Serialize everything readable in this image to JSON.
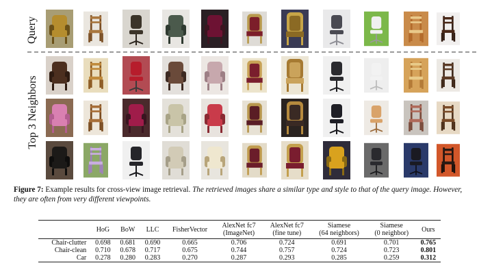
{
  "figure": {
    "query_label": "Query",
    "neighbors_label": "Top 3 Neighbors",
    "columns": 11,
    "rows": [
      {
        "name": "query",
        "images": [
          {
            "bg": "#a89d74",
            "seat": "#b58d2e",
            "frame": "#6b5118",
            "type": "armchair"
          },
          {
            "bg": "#eae6df",
            "seat": "#a9773f",
            "frame": "#7a4e24",
            "type": "wood"
          },
          {
            "bg": "#d9d6cf",
            "seat": "#3b3429",
            "frame": "#2a241c",
            "type": "office"
          },
          {
            "bg": "#e8e6e2",
            "seat": "#4b5a4c",
            "frame": "#2f3a30",
            "type": "armchair"
          },
          {
            "bg": "#2a1f24",
            "seat": "#6d1233",
            "frame": "#3b1420",
            "type": "armchair"
          },
          {
            "bg": "#dedbd6",
            "seat": "#7c1e2a",
            "frame": "#b89a4e",
            "type": "throne"
          },
          {
            "bg": "#3a3b55",
            "seat": "#8b6a24",
            "frame": "#c7a548",
            "type": "throne"
          },
          {
            "bg": "#e9e9ea",
            "seat": "#4a4a52",
            "frame": "#8d8d94",
            "type": "office"
          },
          {
            "bg": "#7cb84a",
            "seat": "#f0f0f0",
            "frame": "#9a9a9a",
            "type": "office"
          },
          {
            "bg": "#c98b4a",
            "seat": "#e9c98a",
            "frame": "#b36a2a",
            "type": "wood"
          },
          {
            "bg": "#f1efee",
            "seat": "#4a2818",
            "frame": "#2f1a10",
            "type": "wood"
          }
        ]
      },
      {
        "name": "n1",
        "images": [
          {
            "bg": "#d9d1c9",
            "seat": "#4c2f1f",
            "frame": "#2f1c12",
            "type": "armchair"
          },
          {
            "bg": "#e9ddbd",
            "seat": "#c08a3c",
            "frame": "#8c5a22",
            "type": "wood"
          },
          {
            "bg": "#b24b53",
            "seat": "#b71d2c",
            "frame": "#3a3a3a",
            "type": "office"
          },
          {
            "bg": "#e3e0dc",
            "seat": "#6a4a3a",
            "frame": "#3d2a22",
            "type": "armchair"
          },
          {
            "bg": "#ece7e3",
            "seat": "#c7a8ad",
            "frame": "#9d7f85",
            "type": "armchair"
          },
          {
            "bg": "#ece4cc",
            "seat": "#7a1e2d",
            "frame": "#c8a256",
            "type": "throne"
          },
          {
            "bg": "#ece6d5",
            "seat": "#caa35b",
            "frame": "#a67a32",
            "type": "throne"
          },
          {
            "bg": "#f0f0f0",
            "seat": "#2b2b2f",
            "frame": "#1d1d20",
            "type": "office"
          },
          {
            "bg": "#eeeeee",
            "seat": "#f2f2f2",
            "frame": "#bcbcbc",
            "type": "office"
          },
          {
            "bg": "#d6a35a",
            "seat": "#e8cb8a",
            "frame": "#b37a36",
            "type": "wood"
          },
          {
            "bg": "#ece9e4",
            "seat": "#5b3a24",
            "frame": "#3a2314",
            "type": "wood"
          }
        ]
      },
      {
        "name": "n2",
        "images": [
          {
            "bg": "#8a6a52",
            "seat": "#d980b1",
            "frame": "#b25d8f",
            "type": "armchair"
          },
          {
            "bg": "#ede6da",
            "seat": "#a86f39",
            "frame": "#7a4b20",
            "type": "wood"
          },
          {
            "bg": "#4a2a2c",
            "seat": "#a01c4a",
            "frame": "#3a1420",
            "type": "armchair"
          },
          {
            "bg": "#e4e1da",
            "seat": "#c9c4a8",
            "frame": "#a8a386",
            "type": "armchair"
          },
          {
            "bg": "#e8e3de",
            "seat": "#c93b4a",
            "frame": "#8a2a33",
            "type": "armchair"
          },
          {
            "bg": "#e7e1d4",
            "seat": "#5a1d25",
            "frame": "#b8974e",
            "type": "throne"
          },
          {
            "bg": "#2a2320",
            "seat": "#3a2a24",
            "frame": "#b68a3e",
            "type": "throne"
          },
          {
            "bg": "#f0f0f0",
            "seat": "#1f1f26",
            "frame": "#15151a",
            "type": "office"
          },
          {
            "bg": "#eeeae4",
            "seat": "#d9a36a",
            "frame": "#9b6a3a",
            "type": "office"
          },
          {
            "bg": "#c9c4be",
            "seat": "#b06a5a",
            "frame": "#7a4a3a",
            "type": "wood"
          },
          {
            "bg": "#e7d9c4",
            "seat": "#7a4a26",
            "frame": "#4a2c16",
            "type": "wood"
          }
        ]
      },
      {
        "name": "n3",
        "images": [
          {
            "bg": "#5a4a3e",
            "seat": "#1c1a18",
            "frame": "#0f0e0d",
            "type": "armchair"
          },
          {
            "bg": "#8ba866",
            "seat": "#c9aee0",
            "frame": "#9f83b8",
            "type": "wood"
          },
          {
            "bg": "#f0f0f0",
            "seat": "#25252a",
            "frame": "#17171b",
            "type": "office"
          },
          {
            "bg": "#e0ddd6",
            "seat": "#d2cbb6",
            "frame": "#a59e89",
            "type": "armchair"
          },
          {
            "bg": "#e8e5de",
            "seat": "#efe7cf",
            "frame": "#b8a57a",
            "type": "armchair"
          },
          {
            "bg": "#e3dbc8",
            "seat": "#6b1d2a",
            "frame": "#c09b4e",
            "type": "throne"
          },
          {
            "bg": "#e6ddc9",
            "seat": "#7a1d2f",
            "frame": "#c4a04e",
            "type": "throne"
          },
          {
            "bg": "#2f2c3a",
            "seat": "#d9a21e",
            "frame": "#8a6a14",
            "type": "armchair"
          },
          {
            "bg": "#6a6a6a",
            "seat": "#2a2a2e",
            "frame": "#1a1a1d",
            "type": "office"
          },
          {
            "bg": "#2a3a6a",
            "seat": "#1a1a22",
            "frame": "#10101a",
            "type": "office"
          },
          {
            "bg": "#d2572a",
            "seat": "#2a1a14",
            "frame": "#1a100c",
            "type": "wood"
          }
        ]
      }
    ]
  },
  "caption": {
    "prefix": "Figure 7:",
    "plain": " Example results for cross-view image retrieval. ",
    "italic": "The retrieved images share a similar type and style to that of the query image. However, they are often from very different viewpoints."
  },
  "table": {
    "headers": [
      {
        "line1": "",
        "line2": ""
      },
      {
        "line1": "HoG",
        "line2": ""
      },
      {
        "line1": "BoW",
        "line2": ""
      },
      {
        "line1": "LLC",
        "line2": ""
      },
      {
        "line1": "FisherVector",
        "line2": ""
      },
      {
        "line1": "AlexNet fc7",
        "line2": "(ImageNet)"
      },
      {
        "line1": "AlexNet fc7",
        "line2": "(fine tune)"
      },
      {
        "line1": "Siamese",
        "line2": "(64 neighbors)"
      },
      {
        "line1": "Siamese",
        "line2": "(0 neighbor)"
      },
      {
        "line1": "Ours",
        "line2": ""
      }
    ],
    "rows": [
      {
        "name": "Chair-clutter",
        "values": [
          "0.698",
          "0.681",
          "0.690",
          "0.665",
          "0.706",
          "0.724",
          "0.691",
          "0.701",
          "0.765"
        ]
      },
      {
        "name": "Chair-clean",
        "values": [
          "0.710",
          "0.678",
          "0.717",
          "0.675",
          "0.744",
          "0.757",
          "0.724",
          "0.723",
          "0.801"
        ]
      },
      {
        "name": "Car",
        "values": [
          "0.278",
          "0.280",
          "0.283",
          "0.270",
          "0.287",
          "0.293",
          "0.285",
          "0.259",
          "0.312"
        ]
      }
    ]
  }
}
